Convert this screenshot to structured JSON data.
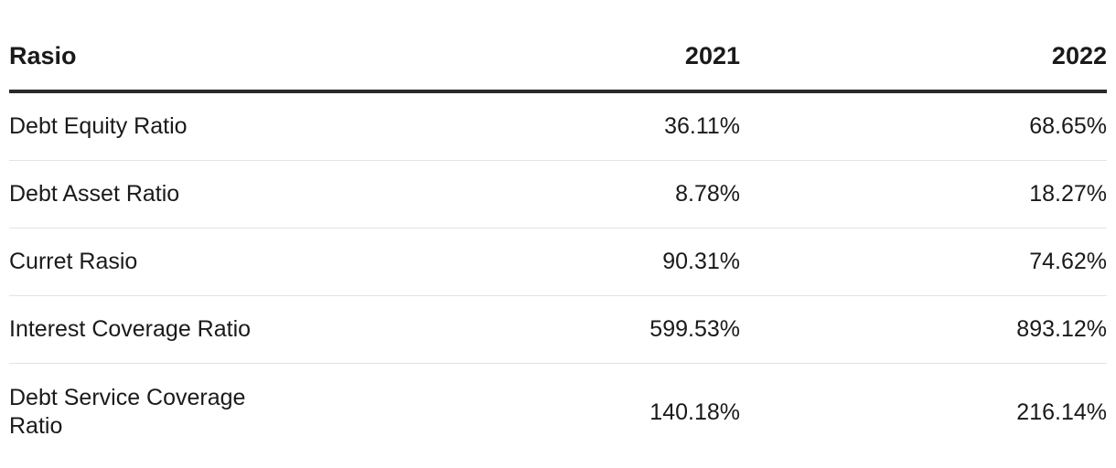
{
  "table": {
    "header": [
      "Rasio",
      "2021",
      "2022"
    ],
    "rows": [
      [
        "Debt Equity Ratio",
        "36.11%",
        "68.65%"
      ],
      [
        "Debt Asset Ratio",
        "8.78%",
        "18.27%"
      ],
      [
        "Curret Rasio",
        "90.31%",
        "74.62%"
      ],
      [
        "Interest Coverage Ratio",
        "599.53%",
        "893.12%"
      ],
      [
        "Debt Service Coverage Ratio",
        "140.18%",
        "216.14%"
      ]
    ]
  }
}
